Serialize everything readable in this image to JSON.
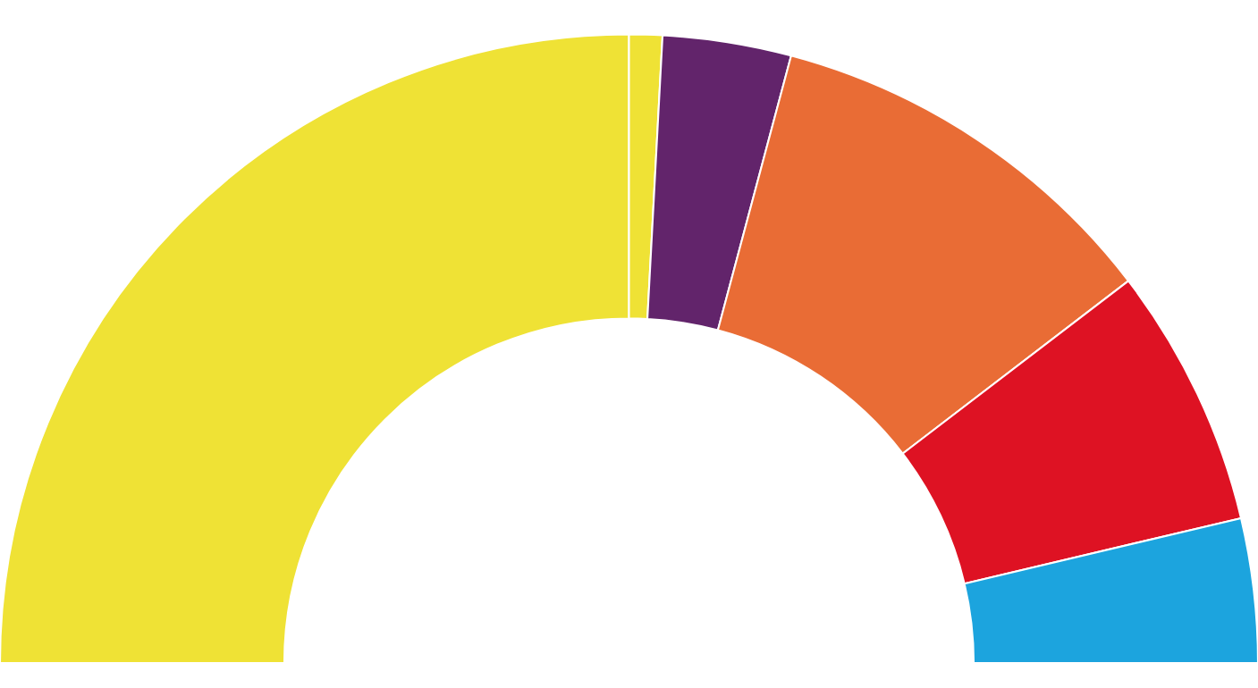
{
  "chart_data": {
    "type": "donut",
    "categories": [
      null,
      null,
      null,
      null,
      null,
      null
    ],
    "values": [
      50,
      1.7,
      6.6,
      20.9,
      13.4,
      7.4
    ],
    "colors": [
      "#efe235",
      "#efe235",
      "#62246b",
      "#e96c35",
      "#de1223",
      "#1ca4de"
    ]
  }
}
